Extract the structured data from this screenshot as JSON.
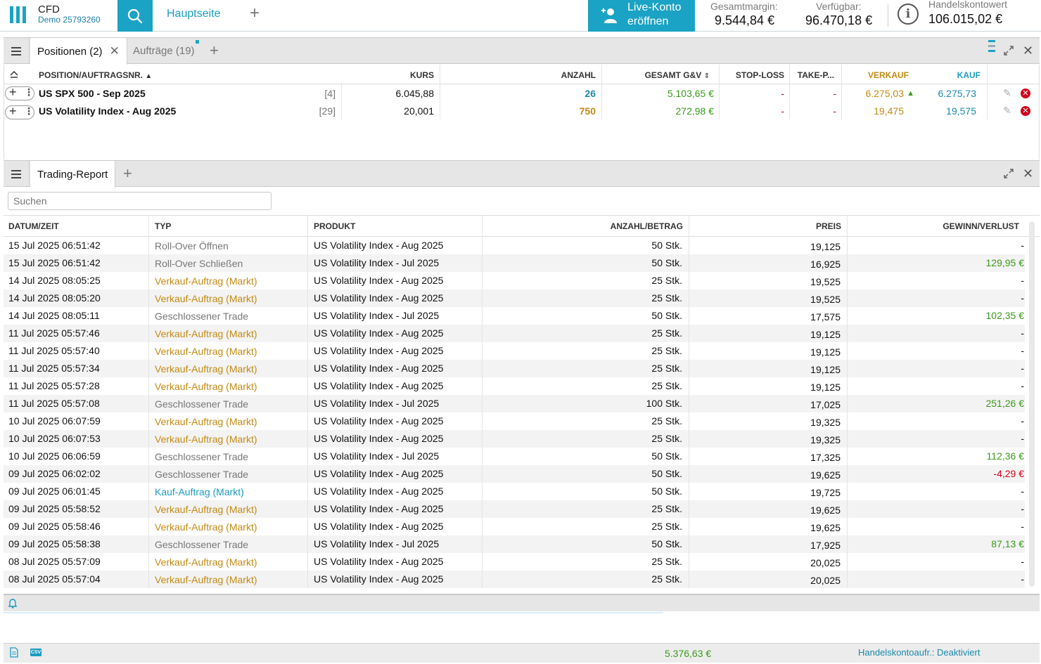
{
  "header": {
    "brand": "CFD",
    "account": "Demo 25793260",
    "home_tab": "Hauptseite",
    "live_button": [
      "Live-Konto",
      "eröffnen"
    ],
    "stats": [
      {
        "label": "Gesamtmargin:",
        "value": "9.544,84 €"
      },
      {
        "label": "Verfügbar:",
        "value": "96.470,18 €"
      },
      {
        "label": "Handelskontowert",
        "value": "106.015,02 €"
      }
    ],
    "colors": {
      "accent": "#1aa3c4"
    }
  },
  "positions_panel": {
    "tabs": [
      {
        "label": "Positionen (2)",
        "active": true
      },
      {
        "label": "Aufträge (19)",
        "active": false
      }
    ],
    "columns": [
      "POSITION/AUFTRAGSNR.",
      "KURS",
      "ANZAHL",
      "GESAMT G&V",
      "STOP-LOSS",
      "TAKE-P...",
      "VERKAUF",
      "KAUF"
    ],
    "rows": [
      {
        "name": "US SPX 500 - Sep 2025",
        "ref": "[4]",
        "kurs": "6.045,88",
        "anzahl": "26",
        "gv": "5.103,65 €",
        "sl": "-",
        "tp": "-",
        "verkauf": "6.275,03",
        "kauf": "6.275,73"
      },
      {
        "name": "US Volatility Index - Aug 2025",
        "ref": "[29]",
        "kurs": "20,001",
        "anzahl": "750",
        "gv": "272,98 €",
        "sl": "-",
        "tp": "-",
        "verkauf": "19,475",
        "kauf": "19,575"
      }
    ]
  },
  "report_panel": {
    "tab": "Trading-Report",
    "search_placeholder": "Suchen",
    "columns": [
      "DATUM/ZEIT",
      "TYP",
      "PRODUKT",
      "ANZAHL/BETRAG",
      "PREIS",
      "GEWINN/VERLUST"
    ],
    "rows": [
      {
        "date": "15 Jul 2025 06:51:42",
        "type": "Roll-Over Öffnen",
        "kind": "grey",
        "product": "US Volatility Index - Aug 2025",
        "qty": "50 Stk.",
        "price": "19,125",
        "pl": "-",
        "plc": "dash"
      },
      {
        "date": "15 Jul 2025 06:51:42",
        "type": "Roll-Over Schließen",
        "kind": "grey",
        "product": "US Volatility Index - Jul 2025",
        "qty": "50 Stk.",
        "price": "16,925",
        "pl": "129,95 €",
        "plc": "green"
      },
      {
        "date": "14 Jul 2025 08:05:25",
        "type": "Verkauf-Auftrag (Markt)",
        "kind": "orange",
        "product": "US Volatility Index - Aug 2025",
        "qty": "25 Stk.",
        "price": "19,525",
        "pl": "-",
        "plc": "dash"
      },
      {
        "date": "14 Jul 2025 08:05:20",
        "type": "Verkauf-Auftrag (Markt)",
        "kind": "orange",
        "product": "US Volatility Index - Aug 2025",
        "qty": "25 Stk.",
        "price": "19,525",
        "pl": "-",
        "plc": "dash"
      },
      {
        "date": "14 Jul 2025 08:05:11",
        "type": "Geschlossener Trade",
        "kind": "grey",
        "product": "US Volatility Index - Jul 2025",
        "qty": "50 Stk.",
        "price": "17,575",
        "pl": "102,35 €",
        "plc": "green"
      },
      {
        "date": "11 Jul 2025 05:57:46",
        "type": "Verkauf-Auftrag (Markt)",
        "kind": "orange",
        "product": "US Volatility Index - Aug 2025",
        "qty": "25 Stk.",
        "price": "19,125",
        "pl": "-",
        "plc": "dash"
      },
      {
        "date": "11 Jul 2025 05:57:40",
        "type": "Verkauf-Auftrag (Markt)",
        "kind": "orange",
        "product": "US Volatility Index - Aug 2025",
        "qty": "25 Stk.",
        "price": "19,125",
        "pl": "-",
        "plc": "dash"
      },
      {
        "date": "11 Jul 2025 05:57:34",
        "type": "Verkauf-Auftrag (Markt)",
        "kind": "orange",
        "product": "US Volatility Index - Aug 2025",
        "qty": "25 Stk.",
        "price": "19,125",
        "pl": "-",
        "plc": "dash"
      },
      {
        "date": "11 Jul 2025 05:57:28",
        "type": "Verkauf-Auftrag (Markt)",
        "kind": "orange",
        "product": "US Volatility Index - Aug 2025",
        "qty": "25 Stk.",
        "price": "19,125",
        "pl": "-",
        "plc": "dash"
      },
      {
        "date": "11 Jul 2025 05:57:08",
        "type": "Geschlossener Trade",
        "kind": "grey",
        "product": "US Volatility Index - Jul 2025",
        "qty": "100 Stk.",
        "price": "17,025",
        "pl": "251,26 €",
        "plc": "green"
      },
      {
        "date": "10 Jul 2025 06:07:59",
        "type": "Verkauf-Auftrag (Markt)",
        "kind": "orange",
        "product": "US Volatility Index - Aug 2025",
        "qty": "25 Stk.",
        "price": "19,325",
        "pl": "-",
        "plc": "dash"
      },
      {
        "date": "10 Jul 2025 06:07:53",
        "type": "Verkauf-Auftrag (Markt)",
        "kind": "orange",
        "product": "US Volatility Index - Aug 2025",
        "qty": "25 Stk.",
        "price": "19,325",
        "pl": "-",
        "plc": "dash"
      },
      {
        "date": "10 Jul 2025 06:06:59",
        "type": "Geschlossener Trade",
        "kind": "grey",
        "product": "US Volatility Index - Jul 2025",
        "qty": "50 Stk.",
        "price": "17,325",
        "pl": "112,36 €",
        "plc": "green"
      },
      {
        "date": "09 Jul 2025 06:02:02",
        "type": "Geschlossener Trade",
        "kind": "grey",
        "product": "US Volatility Index - Aug 2025",
        "qty": "50 Stk.",
        "price": "19,625",
        "pl": "-4,29 €",
        "plc": "red"
      },
      {
        "date": "09 Jul 2025 06:01:45",
        "type": "Kauf-Auftrag (Markt)",
        "kind": "blue",
        "product": "US Volatility Index - Aug 2025",
        "qty": "50 Stk.",
        "price": "19,725",
        "pl": "-",
        "plc": "dash"
      },
      {
        "date": "09 Jul 2025 05:58:52",
        "type": "Verkauf-Auftrag (Markt)",
        "kind": "orange",
        "product": "US Volatility Index - Aug 2025",
        "qty": "25 Stk.",
        "price": "19,625",
        "pl": "-",
        "plc": "dash"
      },
      {
        "date": "09 Jul 2025 05:58:46",
        "type": "Verkauf-Auftrag (Markt)",
        "kind": "orange",
        "product": "US Volatility Index - Aug 2025",
        "qty": "25 Stk.",
        "price": "19,625",
        "pl": "-",
        "plc": "dash"
      },
      {
        "date": "09 Jul 2025 05:58:38",
        "type": "Geschlossener Trade",
        "kind": "grey",
        "product": "US Volatility Index - Jul 2025",
        "qty": "50 Stk.",
        "price": "17,925",
        "pl": "87,13 €",
        "plc": "green"
      },
      {
        "date": "08 Jul 2025 05:57:09",
        "type": "Verkauf-Auftrag (Markt)",
        "kind": "orange",
        "product": "US Volatility Index - Aug 2025",
        "qty": "25 Stk.",
        "price": "20,025",
        "pl": "-",
        "plc": "dash"
      },
      {
        "date": "08 Jul 2025 05:57:04",
        "type": "Verkauf-Auftrag (Markt)",
        "kind": "orange",
        "product": "US Volatility Index - Aug 2025",
        "qty": "25 Stk.",
        "price": "20,025",
        "pl": "-",
        "plc": "dash"
      }
    ]
  },
  "footer": {
    "total": "5.376,63 €",
    "status": "Handelskontoaufr.: Deaktiviert",
    "csv_label": "CSV"
  }
}
